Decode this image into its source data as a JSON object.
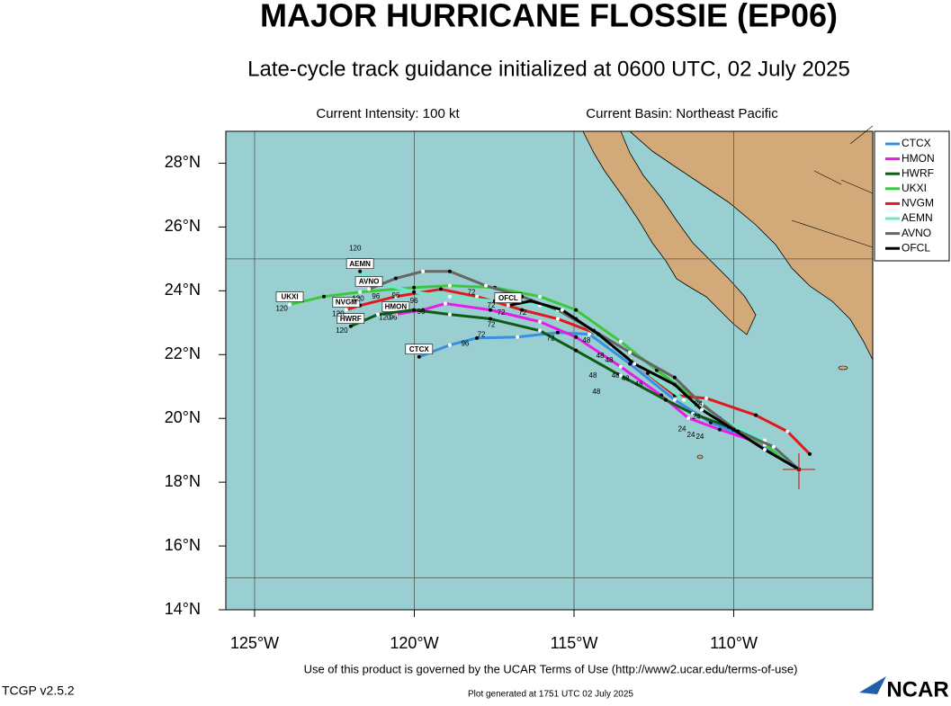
{
  "header": {
    "title": "MAJOR HURRICANE FLOSSIE (EP06)",
    "subtitle": "Late-cycle track guidance initialized at 0600 UTC, 02 July 2025",
    "intensity": "Current Intensity: 100 kt",
    "basin": "Current Basin: Northeast Pacific"
  },
  "map": {
    "xlim": [
      -125.9,
      -105.65
    ],
    "ylim": [
      14,
      29
    ],
    "xticks": [
      {
        "value": -125,
        "label": "125°W"
      },
      {
        "value": -120,
        "label": "120°W"
      },
      {
        "value": -115,
        "label": "115°W"
      },
      {
        "value": -110,
        "label": "110°W"
      }
    ],
    "yticks": [
      {
        "value": 14,
        "label": "14°N"
      },
      {
        "value": 16,
        "label": "16°N"
      },
      {
        "value": 18,
        "label": "18°N"
      },
      {
        "value": 20,
        "label": "20°N"
      },
      {
        "value": 22,
        "label": "22°N"
      },
      {
        "value": 24,
        "label": "24°N"
      },
      {
        "value": 26,
        "label": "26°N"
      },
      {
        "value": 28,
        "label": "28°N"
      }
    ],
    "grid_lon": [
      -125,
      -120,
      -115,
      -110
    ],
    "grid_lat": [
      15,
      25
    ],
    "current_position": {
      "lon": -107.96,
      "lat": 18.4
    },
    "tracks": [
      {
        "name": "CTCX",
        "color": "#3a8fe0",
        "lon": [
          -107.96,
          -109.31,
          -110.72,
          -111.85,
          -113.25,
          -114.52,
          -115.51,
          -116.77,
          -118.04,
          -118.89,
          -119.85
        ],
        "lat": [
          18.4,
          19.31,
          19.87,
          20.58,
          21.71,
          22.64,
          22.69,
          22.55,
          22.52,
          22.3,
          21.93
        ]
      },
      {
        "name": "HMON",
        "color": "#e81ce8",
        "lon": [
          -107.96,
          -109.03,
          -110.44,
          -111.42,
          -112.27,
          -113.54,
          -114.94,
          -116.07,
          -117.62,
          -119.03,
          -119.73,
          -120.58
        ],
        "lat": [
          18.4,
          19.17,
          19.65,
          20.01,
          20.72,
          21.62,
          22.55,
          23.03,
          23.4,
          23.6,
          23.4,
          23.26
        ]
      },
      {
        "name": "HWRF",
        "color": "#0f5a14",
        "lon": [
          -107.96,
          -108.89,
          -110.15,
          -111.28,
          -112.13,
          -113.54,
          -114.94,
          -116.07,
          -117.62,
          -118.89,
          -120.01,
          -121.14,
          -121.99
        ],
        "lat": [
          18.4,
          19.17,
          19.73,
          20.15,
          20.58,
          21.34,
          22.13,
          22.75,
          23.12,
          23.26,
          23.4,
          23.26,
          22.89
        ]
      },
      {
        "name": "UKXI",
        "color": "#3cc83c",
        "lon": [
          -107.96,
          -109.03,
          -110.01,
          -111.14,
          -112.41,
          -113.54,
          -114.94,
          -116.07,
          -117.48,
          -118.89,
          -120.01,
          -121.7,
          -122.83,
          -123.9
        ],
        "lat": [
          18.4,
          19.17,
          19.65,
          20.58,
          21.51,
          22.41,
          23.4,
          23.82,
          24.1,
          24.16,
          24.1,
          23.96,
          23.82,
          23.57
        ]
      },
      {
        "name": "NVGM",
        "color": "#e01a1a",
        "lon": [
          -107.62,
          -108.32,
          -109.31,
          -110.86,
          -111.85,
          -113.25,
          -114.38,
          -115.51,
          -116.63,
          -118.04,
          -119.17,
          -120.58,
          -121.7,
          -122.13
        ],
        "lat": [
          18.88,
          19.59,
          20.1,
          20.63,
          20.72,
          21.85,
          22.69,
          23.12,
          23.4,
          23.82,
          24.05,
          23.82,
          23.54,
          23.4
        ]
      },
      {
        "name": "AEMN",
        "color": "#6fe8c8",
        "lon": [
          -107.96,
          -109.03,
          -110.44,
          -111.56,
          -112.69,
          -113.82,
          -114.94,
          -116.07,
          -117.48,
          -118.89,
          -120.01,
          -121.14,
          -121.7
        ],
        "lat": [
          18.4,
          19.31,
          20.01,
          20.58,
          21.42,
          22.27,
          23.12,
          23.54,
          23.68,
          23.82,
          23.96,
          24.25,
          24.61
        ]
      },
      {
        "name": "AVNO",
        "color": "#666666",
        "lon": [
          -107.96,
          -108.75,
          -109.87,
          -111.0,
          -111.85,
          -113.25,
          -114.38,
          -115.51,
          -116.63,
          -117.76,
          -118.89,
          -119.73,
          -120.58,
          -121.42
        ],
        "lat": [
          18.4,
          19.11,
          19.59,
          20.44,
          21.28,
          22.07,
          22.75,
          23.4,
          23.82,
          24.16,
          24.61,
          24.61,
          24.39,
          24.05
        ]
      },
      {
        "name": "OFCL",
        "color": "#000000",
        "lon": [
          -107.96,
          -109.03,
          -110.01,
          -111.0,
          -111.85,
          -113.11,
          -114.24,
          -115.37,
          -116.35,
          -117.06
        ],
        "lat": [
          18.4,
          19.02,
          19.65,
          20.27,
          21.06,
          21.71,
          22.64,
          23.4,
          23.68,
          23.54
        ]
      }
    ],
    "hour_labels": [
      {
        "text": "120",
        "lon": -121.85,
        "lat": 25.32
      },
      {
        "text": "96",
        "lon": -120.01,
        "lat": 23.68
      },
      {
        "text": "72",
        "lon": -118.21,
        "lat": 23.94
      },
      {
        "text": "120",
        "lon": -121.76,
        "lat": 23.74
      },
      {
        "text": "96",
        "lon": -121.2,
        "lat": 23.82
      },
      {
        "text": "96",
        "lon": -120.58,
        "lat": 23.85
      },
      {
        "text": "120",
        "lon": -122.38,
        "lat": 23.26
      },
      {
        "text": "120",
        "lon": -120.92,
        "lat": 23.15
      },
      {
        "text": "96",
        "lon": -120.66,
        "lat": 23.15
      },
      {
        "text": "96",
        "lon": -119.79,
        "lat": 23.34
      },
      {
        "text": "120",
        "lon": -122.27,
        "lat": 22.75
      },
      {
        "text": "120",
        "lon": -124.15,
        "lat": 23.43
      },
      {
        "text": "72",
        "lon": -117.59,
        "lat": 23.54
      },
      {
        "text": "72",
        "lon": -117.28,
        "lat": 23.31
      },
      {
        "text": "72",
        "lon": -116.61,
        "lat": 23.31
      },
      {
        "text": "72",
        "lon": -117.59,
        "lat": 22.92
      },
      {
        "text": "72",
        "lon": -117.9,
        "lat": 22.61
      },
      {
        "text": "96",
        "lon": -118.41,
        "lat": 22.33
      },
      {
        "text": "72",
        "lon": -115.73,
        "lat": 22.5
      },
      {
        "text": "48",
        "lon": -114.61,
        "lat": 22.44
      },
      {
        "text": "48",
        "lon": -114.18,
        "lat": 21.96
      },
      {
        "text": "48",
        "lon": -113.9,
        "lat": 21.82
      },
      {
        "text": "48",
        "lon": -113.7,
        "lat": 21.34
      },
      {
        "text": "48",
        "lon": -113.39,
        "lat": 21.23
      },
      {
        "text": "48",
        "lon": -112.97,
        "lat": 21.06
      },
      {
        "text": "48",
        "lon": -114.41,
        "lat": 21.34
      },
      {
        "text": "48",
        "lon": -114.3,
        "lat": 20.83
      },
      {
        "text": "24",
        "lon": -111.11,
        "lat": 20.44
      },
      {
        "text": "24",
        "lon": -111.17,
        "lat": 20.04
      },
      {
        "text": "24",
        "lon": -111.62,
        "lat": 19.65
      },
      {
        "text": "24",
        "lon": -111.34,
        "lat": 19.48
      },
      {
        "text": "24",
        "lon": -111.06,
        "lat": 19.42
      }
    ]
  },
  "footer": {
    "terms": "Use of this product is governed by the UCAR Terms of Use (http://www2.ucar.edu/terms-of-use)",
    "version": "TCGP v2.5.2",
    "generated": "Plot generated at 1751 UTC   02 July 2025",
    "logo": "NCAR"
  }
}
